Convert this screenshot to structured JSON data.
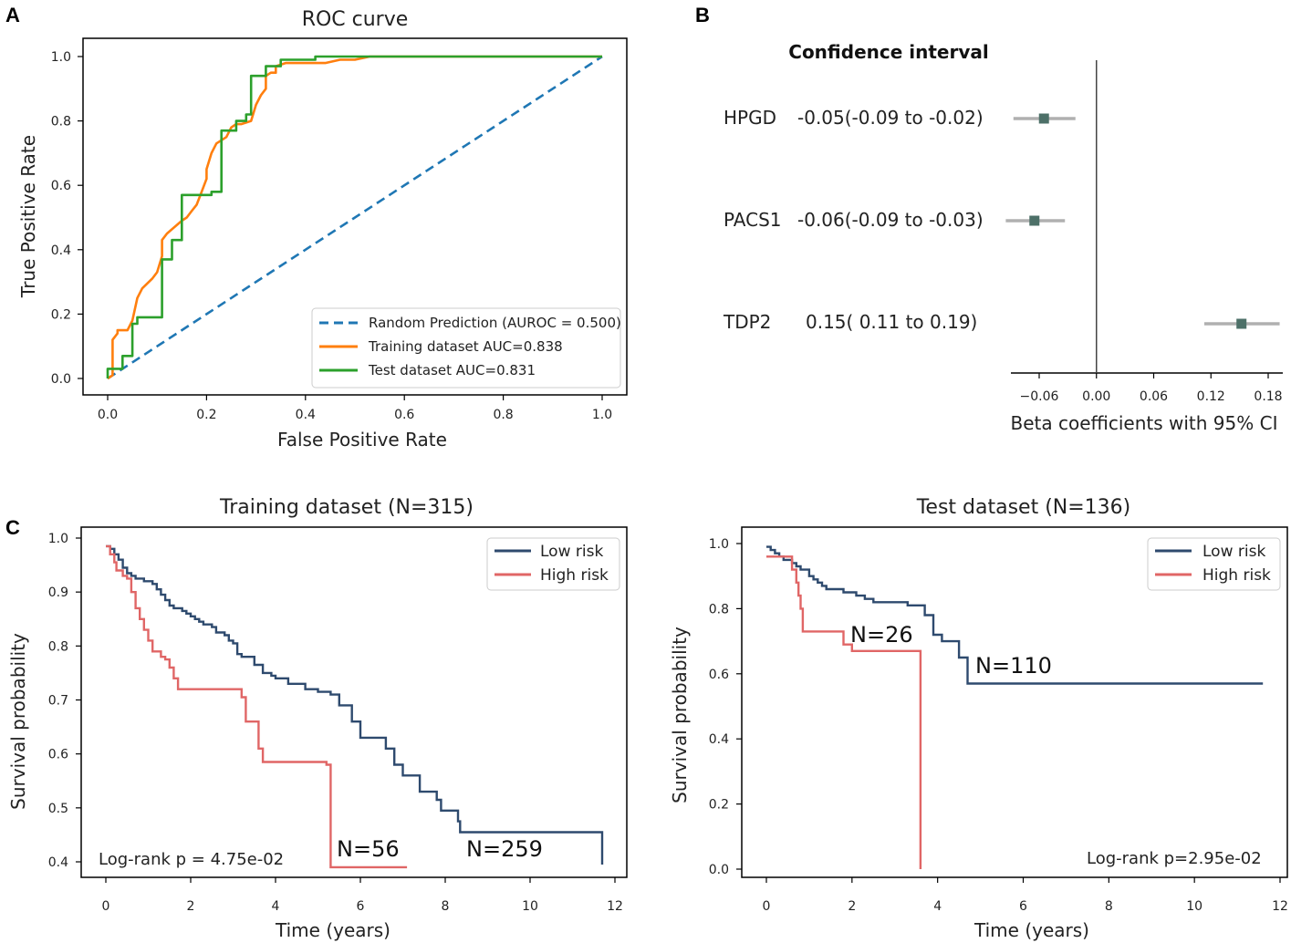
{
  "panels": {
    "a": "A",
    "b": "B",
    "c": "C"
  },
  "chart_data": [
    {
      "type": "line",
      "title": "ROC curve",
      "xlabel": "False Positive Rate",
      "ylabel": "True Positive Rate",
      "xlim": [
        0,
        1
      ],
      "ylim": [
        0,
        1
      ],
      "xticks": [
        "0.0",
        "0.2",
        "0.4",
        "0.6",
        "0.8",
        "1.0"
      ],
      "yticks": [
        "0.0",
        "0.2",
        "0.4",
        "0.6",
        "0.8",
        "1.0"
      ],
      "legend_position": "bottom-right",
      "series": [
        {
          "name": "Random Prediction (AUROC = 0.500)",
          "color": "#1f77b4",
          "dashed": true,
          "x": [
            0,
            1
          ],
          "y": [
            0,
            1
          ]
        },
        {
          "name": "Training dataset AUC=0.838",
          "color": "#ff7f0e",
          "x": [
            0,
            0.01,
            0.01,
            0.02,
            0.02,
            0.04,
            0.05,
            0.06,
            0.07,
            0.09,
            0.1,
            0.11,
            0.11,
            0.12,
            0.15,
            0.16,
            0.17,
            0.18,
            0.19,
            0.2,
            0.2,
            0.21,
            0.22,
            0.24,
            0.25,
            0.26,
            0.27,
            0.29,
            0.3,
            0.31,
            0.32,
            0.32,
            0.33,
            0.34,
            0.34,
            0.36,
            0.38,
            0.41,
            0.44,
            0.47,
            0.5,
            0.53,
            1.0
          ],
          "y": [
            0,
            0.01,
            0.12,
            0.14,
            0.15,
            0.15,
            0.18,
            0.25,
            0.28,
            0.31,
            0.33,
            0.38,
            0.43,
            0.45,
            0.49,
            0.5,
            0.52,
            0.54,
            0.58,
            0.62,
            0.65,
            0.7,
            0.73,
            0.75,
            0.78,
            0.79,
            0.79,
            0.8,
            0.85,
            0.88,
            0.9,
            0.94,
            0.95,
            0.95,
            0.97,
            0.98,
            0.98,
            0.98,
            0.98,
            0.99,
            0.99,
            1.0,
            1.0
          ]
        },
        {
          "name": "Test dataset AUC=0.831",
          "color": "#2ca02c",
          "x": [
            0,
            0,
            0.03,
            0.03,
            0.05,
            0.05,
            0.06,
            0.06,
            0.08,
            0.11,
            0.11,
            0.13,
            0.13,
            0.15,
            0.15,
            0.21,
            0.21,
            0.23,
            0.23,
            0.26,
            0.26,
            0.28,
            0.28,
            0.29,
            0.29,
            0.32,
            0.32,
            0.35,
            0.35,
            0.42,
            0.42,
            1.0
          ],
          "y": [
            0,
            0.03,
            0.03,
            0.07,
            0.07,
            0.17,
            0.17,
            0.19,
            0.19,
            0.19,
            0.37,
            0.37,
            0.43,
            0.43,
            0.57,
            0.57,
            0.58,
            0.58,
            0.77,
            0.77,
            0.8,
            0.8,
            0.82,
            0.82,
            0.94,
            0.94,
            0.97,
            0.97,
            0.99,
            0.99,
            1.0,
            1.0
          ]
        }
      ]
    },
    {
      "type": "forest",
      "header": "Confidence interval",
      "xlabel": "Beta coefficients with 95% CI",
      "xticks": [
        "−0.06",
        "0.00",
        "0.06",
        "0.12",
        "0.18"
      ],
      "xlim": [
        -0.095,
        0.19
      ],
      "reference_line": 0,
      "rows": [
        {
          "gene": "HPGD",
          "ci_text": "-0.05(-0.09 to -0.02)",
          "estimate": -0.055,
          "low": -0.087,
          "high": -0.022
        },
        {
          "gene": "PACS1",
          "ci_text": "-0.06(-0.09 to -0.03)",
          "estimate": -0.065,
          "low": -0.095,
          "high": -0.033
        },
        {
          "gene": "TDP2",
          "ci_text": "0.15( 0.11 to  0.19)",
          "estimate": 0.152,
          "low": 0.113,
          "high": 0.192
        }
      ]
    },
    {
      "type": "line",
      "subtype": "kaplan-meier",
      "title": "Training dataset (N=315)",
      "xlabel": "Time (years)",
      "ylabel": "Survival probability",
      "xlim": [
        -0.3,
        12.3
      ],
      "ylim": [
        0.385,
        1.0
      ],
      "xticks": [
        "0",
        "2",
        "4",
        "6",
        "8",
        "10",
        "12"
      ],
      "yticks": [
        "0.4",
        "0.5",
        "0.6",
        "0.7",
        "0.8",
        "0.9",
        "1.0"
      ],
      "legend_position": "top-right",
      "annotation": "Log-rank p = 4.75e-02",
      "series": [
        {
          "name": "Low risk",
          "color": "#2e4a6e",
          "label": "N=259",
          "x": [
            0,
            0.1,
            0.2,
            0.3,
            0.4,
            0.5,
            0.6,
            0.7,
            0.9,
            1.1,
            1.2,
            1.3,
            1.4,
            1.5,
            1.6,
            1.8,
            1.9,
            2.0,
            2.1,
            2.2,
            2.3,
            2.5,
            2.6,
            2.8,
            2.9,
            3.0,
            3.1,
            3.2,
            3.5,
            3.7,
            3.9,
            4.0,
            4.3,
            4.7,
            5.0,
            5.3,
            5.5,
            5.8,
            6.0,
            6.6,
            6.8,
            7.0,
            7.4,
            7.8,
            7.9,
            8.3,
            8.35,
            11.7
          ],
          "y": [
            0.985,
            0.98,
            0.97,
            0.96,
            0.945,
            0.935,
            0.93,
            0.925,
            0.92,
            0.915,
            0.905,
            0.895,
            0.885,
            0.875,
            0.87,
            0.865,
            0.86,
            0.855,
            0.85,
            0.845,
            0.84,
            0.835,
            0.825,
            0.82,
            0.81,
            0.805,
            0.785,
            0.78,
            0.765,
            0.75,
            0.745,
            0.74,
            0.73,
            0.72,
            0.715,
            0.71,
            0.69,
            0.66,
            0.63,
            0.61,
            0.58,
            0.56,
            0.53,
            0.515,
            0.495,
            0.475,
            0.455,
            0.395
          ]
        },
        {
          "name": "High risk",
          "color": "#e06666",
          "label": "N=56",
          "x": [
            0,
            0.1,
            0.2,
            0.25,
            0.4,
            0.5,
            0.6,
            0.7,
            0.8,
            0.9,
            1.0,
            1.1,
            1.3,
            1.4,
            1.5,
            1.6,
            1.7,
            3.2,
            3.3,
            3.6,
            3.7,
            5.2,
            5.3,
            7.1
          ],
          "y": [
            0.985,
            0.97,
            0.955,
            0.94,
            0.93,
            0.925,
            0.9,
            0.87,
            0.85,
            0.83,
            0.81,
            0.79,
            0.78,
            0.775,
            0.76,
            0.74,
            0.72,
            0.705,
            0.66,
            0.61,
            0.585,
            0.58,
            0.39,
            0.39
          ]
        }
      ]
    },
    {
      "type": "line",
      "subtype": "kaplan-meier",
      "title": "Test dataset (N=136)",
      "xlabel": "Time (years)",
      "ylabel": "Survival probability",
      "xlim": [
        -0.35,
        12.4
      ],
      "ylim": [
        -0.04,
        1.04
      ],
      "xticks": [
        "0",
        "2",
        "4",
        "6",
        "8",
        "10",
        "12"
      ],
      "yticks": [
        "0.0",
        "0.2",
        "0.4",
        "0.6",
        "0.8",
        "1.0"
      ],
      "legend_position": "top-right",
      "annotation": "Log-rank p=2.95e-02",
      "series": [
        {
          "name": "Low risk",
          "color": "#2e4a6e",
          "label": "N=110",
          "x": [
            0,
            0.1,
            0.2,
            0.3,
            0.4,
            0.6,
            0.7,
            0.8,
            1.0,
            1.1,
            1.2,
            1.3,
            1.4,
            1.6,
            1.8,
            2.1,
            2.3,
            2.5,
            3.3,
            3.7,
            3.9,
            4.1,
            4.5,
            4.7,
            11.6
          ],
          "y": [
            0.99,
            0.98,
            0.97,
            0.96,
            0.95,
            0.94,
            0.93,
            0.92,
            0.9,
            0.89,
            0.88,
            0.87,
            0.86,
            0.86,
            0.85,
            0.84,
            0.83,
            0.82,
            0.81,
            0.78,
            0.72,
            0.7,
            0.65,
            0.57,
            0.57
          ]
        },
        {
          "name": "High risk",
          "color": "#e06666",
          "label": "N=26",
          "x": [
            0,
            0.6,
            0.7,
            0.75,
            0.8,
            0.85,
            1.8,
            2.0,
            3.6,
            3.6
          ],
          "y": [
            0.96,
            0.92,
            0.88,
            0.84,
            0.8,
            0.73,
            0.69,
            0.67,
            0.67,
            0.0
          ]
        }
      ]
    }
  ]
}
